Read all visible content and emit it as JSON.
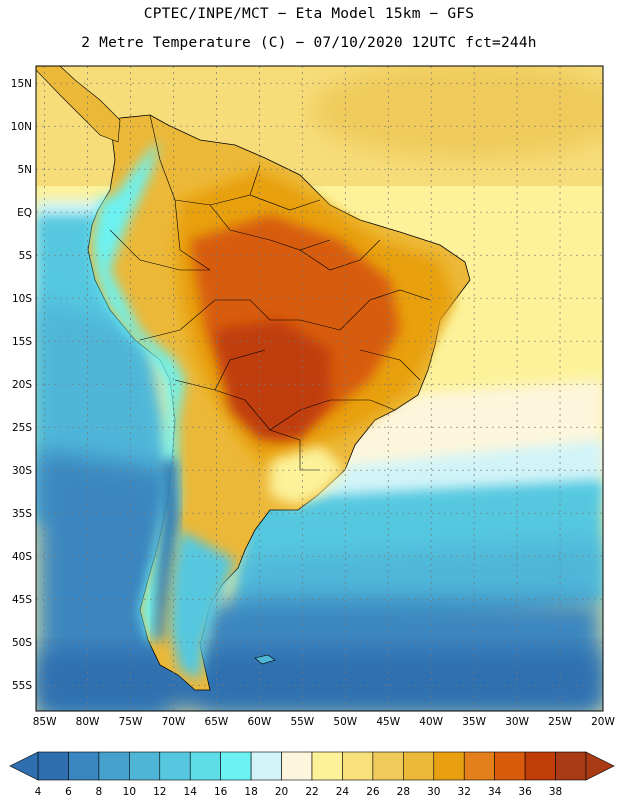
{
  "title": {
    "line1": "CPTEC/INPE/MCT −  Eta Model 15km − GFS",
    "line2": "2 Metre Temperature (C) − 07/10/2020 12UTC fct=244h"
  },
  "map": {
    "lat_labels": [
      "15N",
      "10N",
      "5N",
      "EQ",
      "5S",
      "10S",
      "15S",
      "20S",
      "25S",
      "30S",
      "35S",
      "40S",
      "45S",
      "50S",
      "55S"
    ],
    "lat_values": [
      15,
      10,
      5,
      0,
      -5,
      -10,
      -15,
      -20,
      -25,
      -30,
      -35,
      -40,
      -45,
      -50,
      -55
    ],
    "lon_labels": [
      "85W",
      "80W",
      "75W",
      "70W",
      "65W",
      "60W",
      "55W",
      "50W",
      "45W",
      "40W",
      "35W",
      "30W",
      "25W",
      "20W"
    ],
    "lon_values": [
      -85,
      -80,
      -75,
      -70,
      -65,
      -60,
      -55,
      -50,
      -45,
      -40,
      -35,
      -30,
      -25,
      -20
    ],
    "lat_range": [
      -58,
      17
    ],
    "lon_range": [
      -86,
      -20
    ]
  },
  "colorbar": {
    "labels": [
      "4",
      "6",
      "8",
      "10",
      "12",
      "14",
      "16",
      "18",
      "20",
      "22",
      "24",
      "26",
      "28",
      "30",
      "32",
      "34",
      "36",
      "38"
    ],
    "colors": [
      "#2f6fb0",
      "#3a86c0",
      "#46a0cc",
      "#4fb6d8",
      "#55c8e0",
      "#5edde8",
      "#6cf2f2",
      "#d2f4f8",
      "#fdf6dc",
      "#fdf29a",
      "#f8e07a",
      "#f0cb5c",
      "#ecb838",
      "#e8a010",
      "#e4801c",
      "#d85c0c",
      "#c03c08",
      "#a83a14"
    ],
    "low_arrow_color": "#2f6fb0",
    "high_arrow_color": "#a83a14"
  }
}
